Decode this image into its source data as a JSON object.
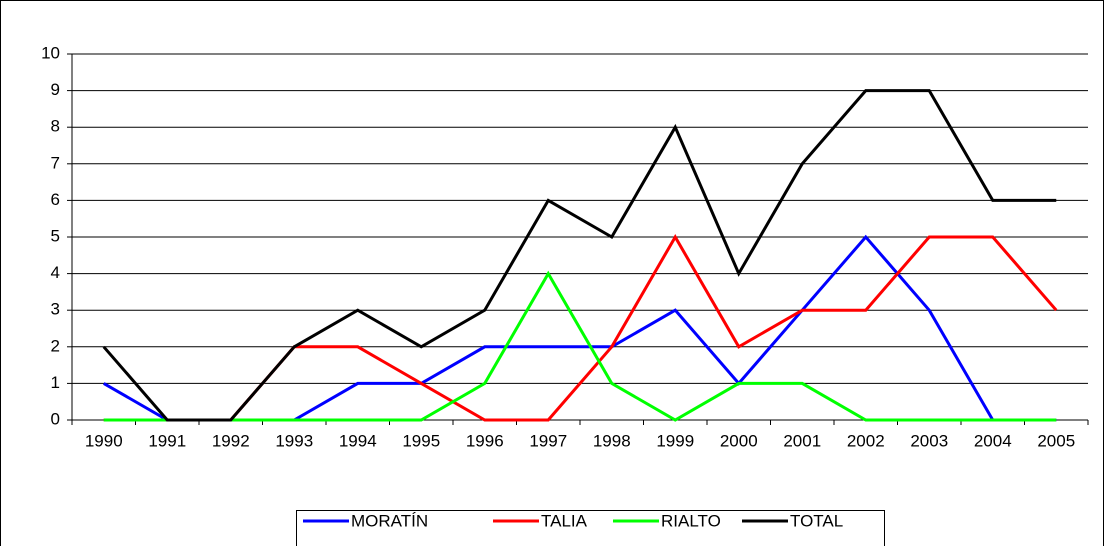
{
  "chart_data": {
    "type": "line",
    "categories": [
      "1990",
      "1991",
      "1992",
      "1993",
      "1994",
      "1995",
      "1996",
      "1997",
      "1998",
      "1999",
      "2000",
      "2001",
      "2002",
      "2003",
      "2004",
      "2005"
    ],
    "series": [
      {
        "name": "MORATÍN",
        "color": "#0000ff",
        "values": [
          1,
          0,
          0,
          0,
          1,
          1,
          2,
          2,
          2,
          3,
          1,
          3,
          5,
          3,
          0,
          0
        ]
      },
      {
        "name": "TALIA",
        "color": "#ff0000",
        "values": [
          0,
          0,
          0,
          2,
          2,
          1,
          0,
          0,
          2,
          5,
          2,
          3,
          3,
          5,
          5,
          3
        ]
      },
      {
        "name": "RIALTO",
        "color": "#00ff00",
        "values": [
          0,
          0,
          0,
          0,
          0,
          0,
          1,
          4,
          1,
          0,
          1,
          1,
          0,
          0,
          0,
          0
        ]
      },
      {
        "name": "TOTAL",
        "color": "#000000",
        "values": [
          2,
          0,
          0,
          2,
          3,
          2,
          3,
          6,
          5,
          8,
          4,
          7,
          9,
          9,
          6,
          6
        ]
      }
    ],
    "ylim": [
      0,
      10
    ],
    "yticks": [
      0,
      1,
      2,
      3,
      4,
      5,
      6,
      7,
      8,
      9,
      10
    ],
    "grid": true,
    "legend": "bottom"
  }
}
